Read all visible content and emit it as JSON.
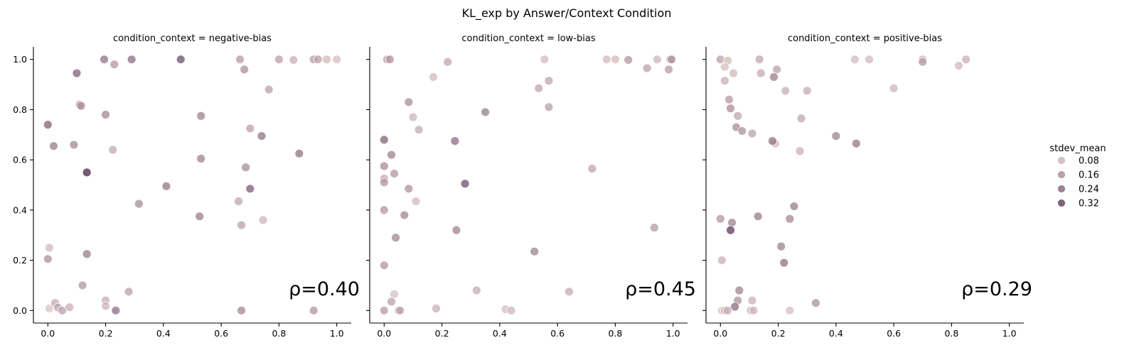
{
  "chart_data": {
    "type": "scatter",
    "title": "KL_exp by Answer/Context Condition",
    "xlim": [
      -0.05,
      1.05
    ],
    "ylim": [
      -0.05,
      1.05
    ],
    "xticks": [
      "0.0",
      "0.2",
      "0.4",
      "0.6",
      "0.8",
      "1.0"
    ],
    "yticks": [
      "0.0",
      "0.2",
      "0.4",
      "0.6",
      "0.8",
      "1.0"
    ],
    "shared_y": true,
    "grid": false,
    "hue": "stdev_mean",
    "color_range": [
      "#ead2cf",
      "#3f1b42"
    ],
    "hue_domain": [
      0.0,
      0.36
    ],
    "legend": {
      "title": "stdev_mean",
      "placement": "right",
      "entries": [
        {
          "label": "0.08",
          "value": 0.08
        },
        {
          "label": "0.16",
          "value": 0.16
        },
        {
          "label": "0.24",
          "value": 0.24
        },
        {
          "label": "0.32",
          "value": 0.32
        }
      ]
    },
    "facets": [
      {
        "title": "condition_context = negative-bias",
        "annotation": "ρ=0.40",
        "points": [
          [
            0.0,
            0.74,
            0.22
          ],
          [
            0.02,
            0.655,
            0.17
          ],
          [
            0.1,
            0.945,
            0.22
          ],
          [
            0.11,
            0.82,
            0.1
          ],
          [
            0.115,
            0.815,
            0.14
          ],
          [
            0.09,
            0.66,
            0.15
          ],
          [
            0.195,
            1.0,
            0.19
          ],
          [
            0.23,
            0.98,
            0.12
          ],
          [
            0.29,
            1.0,
            0.2
          ],
          [
            0.46,
            1.0,
            0.26
          ],
          [
            0.2,
            0.78,
            0.15
          ],
          [
            0.225,
            0.64,
            0.08
          ],
          [
            0.135,
            0.55,
            0.34
          ],
          [
            0.0,
            0.205,
            0.13
          ],
          [
            0.005,
            0.25,
            0.05
          ],
          [
            0.135,
            0.225,
            0.17
          ],
          [
            0.12,
            0.1,
            0.12
          ],
          [
            0.005,
            0.008,
            0.03
          ],
          [
            0.025,
            0.03,
            0.08
          ],
          [
            0.035,
            0.012,
            0.1
          ],
          [
            0.05,
            0.0,
            0.1
          ],
          [
            0.075,
            0.013,
            0.07
          ],
          [
            0.2,
            0.04,
            0.08
          ],
          [
            0.2,
            0.018,
            0.06
          ],
          [
            0.235,
            0.0,
            0.2
          ],
          [
            0.28,
            0.075,
            0.1
          ],
          [
            0.315,
            0.425,
            0.14
          ],
          [
            0.41,
            0.495,
            0.18
          ],
          [
            0.525,
            0.375,
            0.17
          ],
          [
            0.53,
            0.775,
            0.16
          ],
          [
            0.53,
            0.605,
            0.16
          ],
          [
            0.665,
            1.0,
            0.11
          ],
          [
            0.68,
            0.96,
            0.13
          ],
          [
            0.7,
            0.725,
            0.1
          ],
          [
            0.74,
            0.695,
            0.19
          ],
          [
            0.765,
            0.88,
            0.1
          ],
          [
            0.685,
            0.57,
            0.14
          ],
          [
            0.7,
            0.485,
            0.23
          ],
          [
            0.66,
            0.435,
            0.09
          ],
          [
            0.67,
            0.34,
            0.1
          ],
          [
            0.745,
            0.36,
            0.06
          ],
          [
            0.67,
            0.0,
            0.15
          ],
          [
            0.8,
            1.0,
            0.1
          ],
          [
            0.85,
            0.998,
            0.07
          ],
          [
            0.92,
            1.0,
            0.1
          ],
          [
            0.935,
            1.0,
            0.1
          ],
          [
            0.965,
            1.0,
            0.05
          ],
          [
            1.0,
            1.0,
            0.04
          ],
          [
            0.87,
            0.625,
            0.19
          ],
          [
            0.92,
            0.0,
            0.12
          ]
        ]
      },
      {
        "title": "condition_context = low-bias",
        "annotation": "ρ=0.45",
        "points": [
          [
            0.01,
            1.0,
            0.1
          ],
          [
            0.02,
            1.0,
            0.12
          ],
          [
            0.22,
            0.99,
            0.09
          ],
          [
            0.17,
            0.93,
            0.05
          ],
          [
            0.085,
            0.83,
            0.14
          ],
          [
            0.1,
            0.77,
            0.06
          ],
          [
            0.12,
            0.72,
            0.08
          ],
          [
            0.0,
            0.68,
            0.22
          ],
          [
            0.025,
            0.62,
            0.16
          ],
          [
            0.0,
            0.575,
            0.14
          ],
          [
            0.0,
            0.525,
            0.09
          ],
          [
            0.0,
            0.51,
            0.12
          ],
          [
            0.035,
            0.545,
            0.12
          ],
          [
            0.085,
            0.485,
            0.13
          ],
          [
            0.11,
            0.435,
            0.05
          ],
          [
            0.07,
            0.38,
            0.15
          ],
          [
            0.04,
            0.29,
            0.15
          ],
          [
            0.0,
            0.4,
            0.12
          ],
          [
            0.0,
            0.18,
            0.12
          ],
          [
            0.035,
            0.065,
            0.04
          ],
          [
            0.025,
            0.035,
            0.1
          ],
          [
            0.0,
            0.0,
            0.11
          ],
          [
            0.05,
            0.0,
            0.06
          ],
          [
            0.055,
            0.0,
            0.1
          ],
          [
            0.18,
            0.008,
            0.07
          ],
          [
            0.245,
            0.675,
            0.2
          ],
          [
            0.25,
            0.32,
            0.16
          ],
          [
            0.28,
            0.505,
            0.26
          ],
          [
            0.35,
            0.79,
            0.17
          ],
          [
            0.32,
            0.08,
            0.08
          ],
          [
            0.42,
            0.005,
            0.04
          ],
          [
            0.44,
            0.0,
            0.06
          ],
          [
            0.52,
            0.235,
            0.16
          ],
          [
            0.535,
            0.885,
            0.09
          ],
          [
            0.555,
            1.0,
            0.05
          ],
          [
            0.57,
            0.915,
            0.09
          ],
          [
            0.57,
            0.81,
            0.1
          ],
          [
            0.64,
            0.075,
            0.08
          ],
          [
            0.72,
            0.565,
            0.09
          ],
          [
            0.77,
            1.0,
            0.05
          ],
          [
            0.8,
            1.0,
            0.05
          ],
          [
            0.845,
            0.998,
            0.12
          ],
          [
            0.91,
            0.965,
            0.1
          ],
          [
            0.945,
            1.0,
            0.06
          ],
          [
            0.985,
            0.96,
            0.11
          ],
          [
            0.99,
            1.0,
            0.09
          ],
          [
            0.995,
            1.0,
            0.13
          ],
          [
            0.935,
            0.33,
            0.11
          ]
        ]
      },
      {
        "title": "condition_context = positive-bias",
        "annotation": "ρ=0.29",
        "points": [
          [
            0.0,
            1.0,
            0.1
          ],
          [
            0.025,
            0.995,
            0.05
          ],
          [
            0.015,
            0.97,
            0.04
          ],
          [
            0.045,
            0.945,
            0.05
          ],
          [
            0.015,
            0.915,
            0.07
          ],
          [
            0.03,
            0.84,
            0.11
          ],
          [
            0.035,
            0.805,
            0.14
          ],
          [
            0.06,
            0.775,
            0.09
          ],
          [
            0.055,
            0.73,
            0.14
          ],
          [
            0.075,
            0.715,
            0.13
          ],
          [
            0.11,
            0.705,
            0.1
          ],
          [
            0.135,
            1.0,
            0.09
          ],
          [
            0.14,
            0.945,
            0.08
          ],
          [
            0.195,
            0.96,
            0.1
          ],
          [
            0.185,
            0.93,
            0.17
          ],
          [
            0.225,
            0.875,
            0.07
          ],
          [
            0.3,
            0.875,
            0.08
          ],
          [
            0.28,
            0.765,
            0.09
          ],
          [
            0.19,
            0.665,
            0.05
          ],
          [
            0.18,
            0.675,
            0.19
          ],
          [
            0.275,
            0.635,
            0.07
          ],
          [
            0.4,
            0.695,
            0.16
          ],
          [
            0.47,
            0.665,
            0.18
          ],
          [
            0.465,
            1.0,
            0.05
          ],
          [
            0.515,
            1.0,
            0.05
          ],
          [
            0.6,
            0.885,
            0.06
          ],
          [
            0.7,
            1.0,
            0.06
          ],
          [
            0.7,
            0.99,
            0.11
          ],
          [
            0.825,
            0.975,
            0.05
          ],
          [
            0.85,
            1.0,
            0.07
          ],
          [
            0.0,
            0.365,
            0.12
          ],
          [
            0.04,
            0.35,
            0.16
          ],
          [
            0.035,
            0.32,
            0.3
          ],
          [
            0.005,
            0.2,
            0.07
          ],
          [
            0.13,
            0.375,
            0.17
          ],
          [
            0.255,
            0.415,
            0.17
          ],
          [
            0.24,
            0.365,
            0.15
          ],
          [
            0.21,
            0.255,
            0.16
          ],
          [
            0.22,
            0.19,
            0.19
          ],
          [
            0.065,
            0.08,
            0.16
          ],
          [
            0.06,
            0.04,
            0.13
          ],
          [
            0.05,
            0.015,
            0.2
          ],
          [
            0.005,
            0.0,
            0.04
          ],
          [
            0.015,
            0.0,
            0.05
          ],
          [
            0.025,
            0.0,
            0.08
          ],
          [
            0.11,
            0.04,
            0.07
          ],
          [
            0.105,
            0.0,
            0.06
          ],
          [
            0.115,
            0.0,
            0.06
          ],
          [
            0.24,
            0.0,
            0.04
          ],
          [
            0.33,
            0.03,
            0.13
          ]
        ]
      }
    ]
  }
}
